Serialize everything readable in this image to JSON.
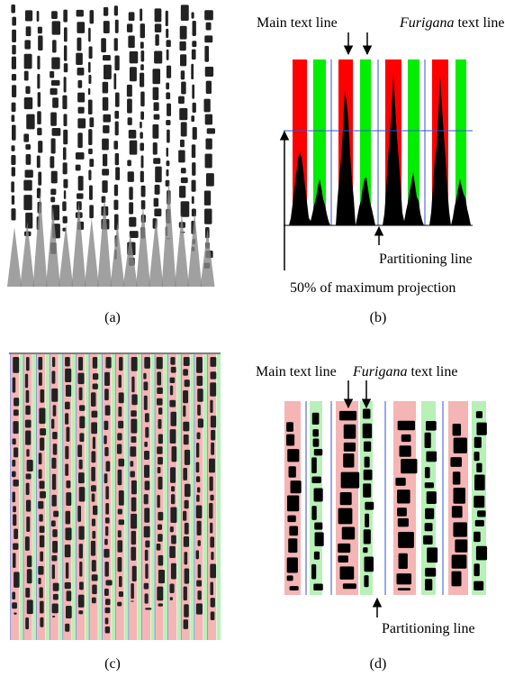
{
  "figure": {
    "panels": [
      {
        "caption": "(a)"
      },
      {
        "caption": "(b)",
        "main_label": "Main text line",
        "furigana_label": {
          "emphasis": "Furigana",
          "rest": "text line"
        },
        "partition_label": "Partitioning line",
        "threshold_label": "50% of maximum projection"
      },
      {
        "caption": "(c)"
      },
      {
        "caption": "(d)",
        "main_label": "Main text line",
        "furigana_label": {
          "emphasis": "Furigana",
          "rest": "text line"
        },
        "partition_label": "Partitioning line"
      }
    ]
  }
}
